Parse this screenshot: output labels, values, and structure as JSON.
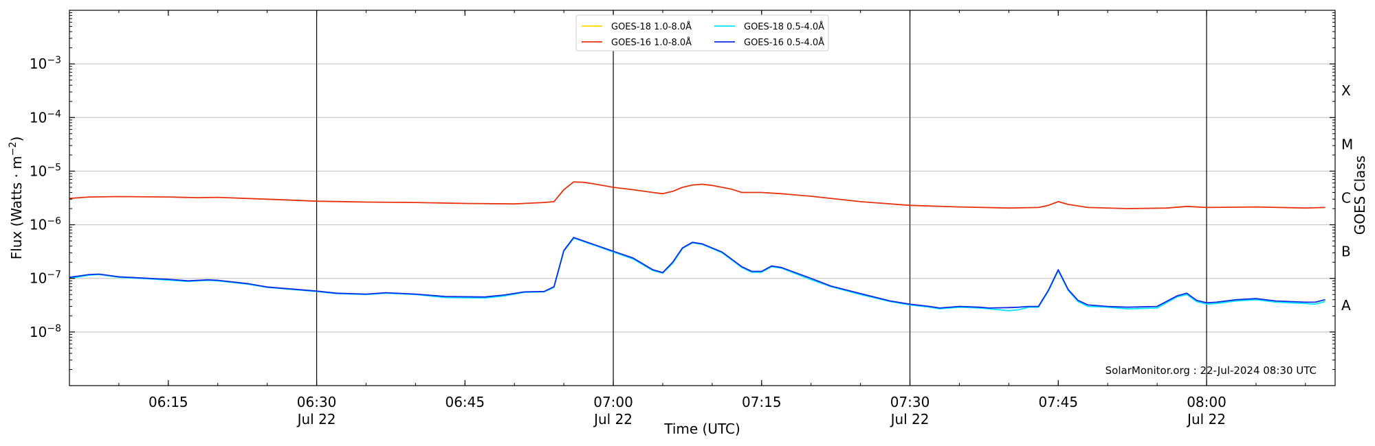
{
  "chart_data": {
    "type": "line",
    "title": "",
    "xlabel": "Time (UTC)",
    "ylabel_main": "Flux (Watts · m",
    "ylabel_sup": "−2",
    "ylabel_close": ")",
    "y_right_label": "GOES Class",
    "y_scale": "log",
    "ylim": [
      1e-09,
      0.01
    ],
    "xlim_minutes": [
      "06:05",
      "08:13"
    ],
    "x_ticks": [
      {
        "t": "06:15",
        "label": "06:15",
        "sublabel": ""
      },
      {
        "t": "06:30",
        "label": "06:30",
        "sublabel": "Jul 22"
      },
      {
        "t": "06:45",
        "label": "06:45",
        "sublabel": ""
      },
      {
        "t": "07:00",
        "label": "07:00",
        "sublabel": "Jul 22"
      },
      {
        "t": "07:15",
        "label": "07:15",
        "sublabel": ""
      },
      {
        "t": "07:30",
        "label": "07:30",
        "sublabel": "Jul 22"
      },
      {
        "t": "07:45",
        "label": "07:45",
        "sublabel": ""
      },
      {
        "t": "08:00",
        "label": "08:00",
        "sublabel": "Jul 22"
      }
    ],
    "vertical_lines": [
      "06:30",
      "07:00",
      "07:30",
      "08:00"
    ],
    "y_ticks": [
      {
        "exp": -8,
        "label_base": "10",
        "label_exp": "−8"
      },
      {
        "exp": -7,
        "label_base": "10",
        "label_exp": "−7"
      },
      {
        "exp": -6,
        "label_base": "10",
        "label_exp": "−6"
      },
      {
        "exp": -5,
        "label_base": "10",
        "label_exp": "−5"
      },
      {
        "exp": -4,
        "label_base": "10",
        "label_exp": "−4"
      },
      {
        "exp": -3,
        "label_base": "10",
        "label_exp": "−3"
      }
    ],
    "goes_classes": [
      {
        "label": "A",
        "exp": -7.5
      },
      {
        "label": "B",
        "exp": -6.5
      },
      {
        "label": "C",
        "exp": -5.5
      },
      {
        "label": "M",
        "exp": -4.5
      },
      {
        "label": "X",
        "exp": -3.5
      }
    ],
    "grid": true,
    "legend_position": "top-center",
    "credit": "SolarMonitor.org : 22-Jul-2024 08:30 UTC",
    "series": [
      {
        "name": "GOES-18 1.0-8.0Å",
        "color": "#ffd700",
        "points": []
      },
      {
        "name": "GOES-16 1.0-8.0Å",
        "color": "#e8300a",
        "points": [
          [
            "06:05",
            3.1e-06
          ],
          [
            "06:07",
            3.3e-06
          ],
          [
            "06:10",
            3.35e-06
          ],
          [
            "06:15",
            3.3e-06
          ],
          [
            "06:18",
            3.2e-06
          ],
          [
            "06:20",
            3.25e-06
          ],
          [
            "06:25",
            3e-06
          ],
          [
            "06:30",
            2.75e-06
          ],
          [
            "06:35",
            2.65e-06
          ],
          [
            "06:40",
            2.6e-06
          ],
          [
            "06:45",
            2.5e-06
          ],
          [
            "06:50",
            2.45e-06
          ],
          [
            "06:53",
            2.6e-06
          ],
          [
            "06:54",
            2.7e-06
          ],
          [
            "06:55",
            4.5e-06
          ],
          [
            "06:56",
            6.3e-06
          ],
          [
            "06:57",
            6.2e-06
          ],
          [
            "06:58",
            5.8e-06
          ],
          [
            "07:00",
            5e-06
          ],
          [
            "07:02",
            4.5e-06
          ],
          [
            "07:04",
            4e-06
          ],
          [
            "07:05",
            3.8e-06
          ],
          [
            "07:06",
            4.2e-06
          ],
          [
            "07:07",
            5e-06
          ],
          [
            "07:08",
            5.5e-06
          ],
          [
            "07:09",
            5.7e-06
          ],
          [
            "07:10",
            5.4e-06
          ],
          [
            "07:12",
            4.6e-06
          ],
          [
            "07:13",
            4e-06
          ],
          [
            "07:15",
            4e-06
          ],
          [
            "07:17",
            3.8e-06
          ],
          [
            "07:20",
            3.4e-06
          ],
          [
            "07:25",
            2.7e-06
          ],
          [
            "07:30",
            2.3e-06
          ],
          [
            "07:35",
            2.15e-06
          ],
          [
            "07:40",
            2.05e-06
          ],
          [
            "07:43",
            2.1e-06
          ],
          [
            "07:44",
            2.3e-06
          ],
          [
            "07:45",
            2.7e-06
          ],
          [
            "07:46",
            2.4e-06
          ],
          [
            "07:48",
            2.1e-06
          ],
          [
            "07:52",
            2e-06
          ],
          [
            "07:56",
            2.05e-06
          ],
          [
            "07:58",
            2.2e-06
          ],
          [
            "08:00",
            2.1e-06
          ],
          [
            "08:05",
            2.15e-06
          ],
          [
            "08:10",
            2.05e-06
          ],
          [
            "08:12",
            2.1e-06
          ]
        ]
      },
      {
        "name": "GOES-18 0.5-4.0Å",
        "color": "#00e5ff",
        "points": [
          [
            "06:05",
            1e-07
          ],
          [
            "06:07",
            1.15e-07
          ],
          [
            "06:08",
            1.18e-07
          ],
          [
            "06:10",
            1.05e-07
          ],
          [
            "06:13",
            9.8e-08
          ],
          [
            "06:15",
            9.3e-08
          ],
          [
            "06:17",
            8.8e-08
          ],
          [
            "06:19",
            9.2e-08
          ],
          [
            "06:20",
            9e-08
          ],
          [
            "06:23",
            7.8e-08
          ],
          [
            "06:25",
            6.8e-08
          ],
          [
            "06:30",
            5.7e-08
          ],
          [
            "06:32",
            5.2e-08
          ],
          [
            "06:35",
            5e-08
          ],
          [
            "06:37",
            5.3e-08
          ],
          [
            "06:40",
            5e-08
          ],
          [
            "06:43",
            4.4e-08
          ],
          [
            "06:47",
            4.3e-08
          ],
          [
            "06:49",
            4.7e-08
          ],
          [
            "06:51",
            5.5e-08
          ],
          [
            "06:53",
            5.6e-08
          ],
          [
            "06:54",
            6.8e-08
          ],
          [
            "06:55",
            3.2e-07
          ],
          [
            "06:56",
            5.6e-07
          ],
          [
            "06:58",
            4.2e-07
          ],
          [
            "07:00",
            3.1e-07
          ],
          [
            "07:02",
            2.3e-07
          ],
          [
            "07:04",
            1.4e-07
          ],
          [
            "07:05",
            1.25e-07
          ],
          [
            "07:06",
            1.9e-07
          ],
          [
            "07:07",
            3.6e-07
          ],
          [
            "07:08",
            4.6e-07
          ],
          [
            "07:09",
            4.3e-07
          ],
          [
            "07:11",
            3e-07
          ],
          [
            "07:13",
            1.6e-07
          ],
          [
            "07:14",
            1.3e-07
          ],
          [
            "07:15",
            1.3e-07
          ],
          [
            "07:16",
            1.65e-07
          ],
          [
            "07:17",
            1.55e-07
          ],
          [
            "07:20",
            9.5e-08
          ],
          [
            "07:22",
            7e-08
          ],
          [
            "07:25",
            5e-08
          ],
          [
            "07:28",
            3.7e-08
          ],
          [
            "07:30",
            3.2e-08
          ],
          [
            "07:32",
            2.9e-08
          ],
          [
            "07:33",
            2.7e-08
          ],
          [
            "07:35",
            2.9e-08
          ],
          [
            "07:37",
            2.8e-08
          ],
          [
            "07:38",
            2.7e-08
          ],
          [
            "07:40",
            2.5e-08
          ],
          [
            "07:41",
            2.6e-08
          ],
          [
            "07:42",
            2.9e-08
          ],
          [
            "07:43",
            2.9e-08
          ],
          [
            "07:44",
            5.8e-08
          ],
          [
            "07:45",
            1.4e-07
          ],
          [
            "07:46",
            6e-08
          ],
          [
            "07:47",
            3.7e-08
          ],
          [
            "07:48",
            3e-08
          ],
          [
            "07:50",
            2.9e-08
          ],
          [
            "07:52",
            2.7e-08
          ],
          [
            "07:55",
            2.8e-08
          ],
          [
            "07:57",
            4.5e-08
          ],
          [
            "07:58",
            5e-08
          ],
          [
            "07:59",
            3.7e-08
          ],
          [
            "08:00",
            3.3e-08
          ],
          [
            "08:01",
            3.4e-08
          ],
          [
            "08:03",
            3.8e-08
          ],
          [
            "08:05",
            4e-08
          ],
          [
            "08:07",
            3.6e-08
          ],
          [
            "08:10",
            3.4e-08
          ],
          [
            "08:11",
            3.3e-08
          ],
          [
            "08:12",
            3.7e-08
          ]
        ]
      },
      {
        "name": "GOES-16 0.5-4.0Å",
        "color": "#0a2be8",
        "points": [
          [
            "06:05",
            1.05e-07
          ],
          [
            "06:07",
            1.18e-07
          ],
          [
            "06:08",
            1.2e-07
          ],
          [
            "06:10",
            1.07e-07
          ],
          [
            "06:13",
            1e-07
          ],
          [
            "06:15",
            9.6e-08
          ],
          [
            "06:17",
            9e-08
          ],
          [
            "06:19",
            9.4e-08
          ],
          [
            "06:20",
            9.2e-08
          ],
          [
            "06:23",
            8e-08
          ],
          [
            "06:25",
            6.9e-08
          ],
          [
            "06:30",
            5.8e-08
          ],
          [
            "06:32",
            5.3e-08
          ],
          [
            "06:35",
            5.1e-08
          ],
          [
            "06:37",
            5.4e-08
          ],
          [
            "06:40",
            5.1e-08
          ],
          [
            "06:43",
            4.6e-08
          ],
          [
            "06:47",
            4.5e-08
          ],
          [
            "06:49",
            4.9e-08
          ],
          [
            "06:51",
            5.6e-08
          ],
          [
            "06:53",
            5.7e-08
          ],
          [
            "06:54",
            7e-08
          ],
          [
            "06:55",
            3.3e-07
          ],
          [
            "06:56",
            5.8e-07
          ],
          [
            "06:58",
            4.3e-07
          ],
          [
            "07:00",
            3.2e-07
          ],
          [
            "07:02",
            2.4e-07
          ],
          [
            "07:04",
            1.45e-07
          ],
          [
            "07:05",
            1.28e-07
          ],
          [
            "07:06",
            2e-07
          ],
          [
            "07:07",
            3.7e-07
          ],
          [
            "07:08",
            4.7e-07
          ],
          [
            "07:09",
            4.4e-07
          ],
          [
            "07:11",
            3.1e-07
          ],
          [
            "07:13",
            1.65e-07
          ],
          [
            "07:14",
            1.35e-07
          ],
          [
            "07:15",
            1.35e-07
          ],
          [
            "07:16",
            1.7e-07
          ],
          [
            "07:17",
            1.6e-07
          ],
          [
            "07:20",
            1e-07
          ],
          [
            "07:22",
            7.2e-08
          ],
          [
            "07:25",
            5.2e-08
          ],
          [
            "07:28",
            3.8e-08
          ],
          [
            "07:30",
            3.3e-08
          ],
          [
            "07:32",
            3e-08
          ],
          [
            "07:33",
            2.8e-08
          ],
          [
            "07:35",
            3e-08
          ],
          [
            "07:37",
            2.9e-08
          ],
          [
            "07:38",
            2.8e-08
          ],
          [
            "07:40",
            2.85e-08
          ],
          [
            "07:41",
            2.9e-08
          ],
          [
            "07:42",
            3e-08
          ],
          [
            "07:43",
            3e-08
          ],
          [
            "07:44",
            6e-08
          ],
          [
            "07:45",
            1.45e-07
          ],
          [
            "07:46",
            6.2e-08
          ],
          [
            "07:47",
            3.9e-08
          ],
          [
            "07:48",
            3.2e-08
          ],
          [
            "07:50",
            3e-08
          ],
          [
            "07:52",
            2.9e-08
          ],
          [
            "07:55",
            3e-08
          ],
          [
            "07:57",
            4.7e-08
          ],
          [
            "07:58",
            5.3e-08
          ],
          [
            "07:59",
            3.9e-08
          ],
          [
            "08:00",
            3.5e-08
          ],
          [
            "08:01",
            3.6e-08
          ],
          [
            "08:03",
            4e-08
          ],
          [
            "08:05",
            4.2e-08
          ],
          [
            "08:07",
            3.8e-08
          ],
          [
            "08:10",
            3.6e-08
          ],
          [
            "08:11",
            3.6e-08
          ],
          [
            "08:12",
            4e-08
          ]
        ]
      }
    ]
  }
}
